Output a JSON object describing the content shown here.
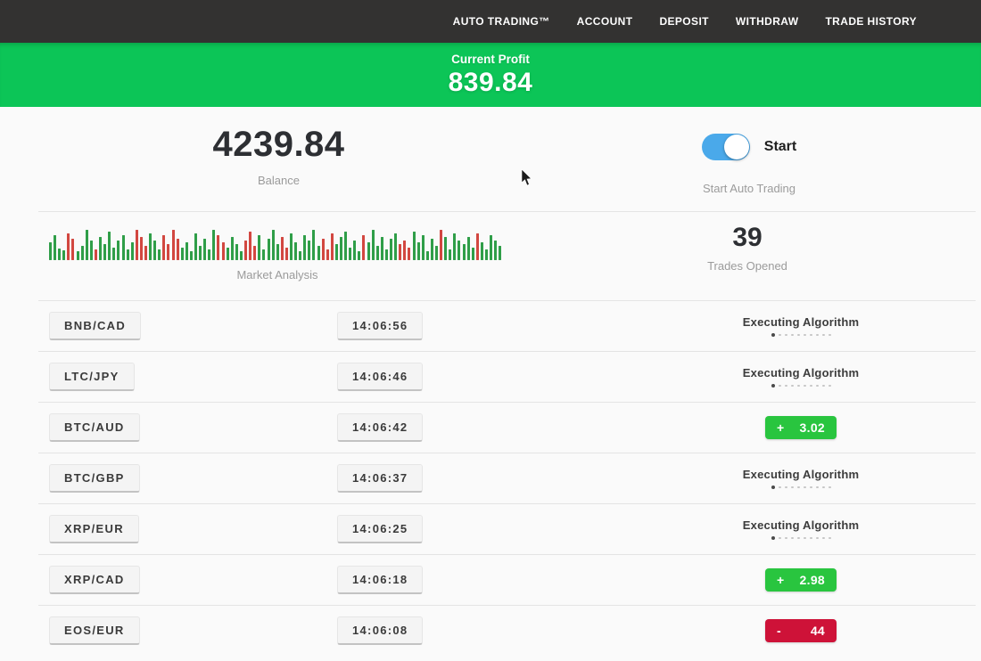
{
  "nav": {
    "items": [
      {
        "id": "auto-trading",
        "label": "AUTO TRADING™"
      },
      {
        "id": "account",
        "label": "ACCOUNT"
      },
      {
        "id": "deposit",
        "label": "DEPOSIT"
      },
      {
        "id": "withdraw",
        "label": "WITHDRAW"
      },
      {
        "id": "trade-history",
        "label": "TRADE HISTORY"
      }
    ]
  },
  "profit_banner": {
    "label": "Current Profit",
    "value": "839.84",
    "bg_color": "#0cc557"
  },
  "balance": {
    "value": "4239.84",
    "label": "Balance"
  },
  "auto_trading": {
    "toggle_label": "Start",
    "caption": "Start Auto Trading",
    "toggle_on": true,
    "toggle_color": "#4aa9ea"
  },
  "market": {
    "label": "Market Analysis",
    "green": "#2f9e48",
    "red": "#d24740",
    "bars": [
      [
        20,
        "g"
      ],
      [
        28,
        "g"
      ],
      [
        13,
        "g"
      ],
      [
        11,
        "g"
      ],
      [
        30,
        "r"
      ],
      [
        24,
        "r"
      ],
      [
        10,
        "g"
      ],
      [
        16,
        "g"
      ],
      [
        34,
        "g"
      ],
      [
        22,
        "g"
      ],
      [
        12,
        "r"
      ],
      [
        26,
        "g"
      ],
      [
        18,
        "g"
      ],
      [
        32,
        "g"
      ],
      [
        14,
        "g"
      ],
      [
        22,
        "g"
      ],
      [
        28,
        "g"
      ],
      [
        12,
        "g"
      ],
      [
        20,
        "g"
      ],
      [
        34,
        "r"
      ],
      [
        26,
        "r"
      ],
      [
        16,
        "r"
      ],
      [
        30,
        "g"
      ],
      [
        22,
        "g"
      ],
      [
        12,
        "g"
      ],
      [
        28,
        "r"
      ],
      [
        18,
        "r"
      ],
      [
        34,
        "r"
      ],
      [
        24,
        "r"
      ],
      [
        14,
        "g"
      ],
      [
        20,
        "g"
      ],
      [
        10,
        "g"
      ],
      [
        30,
        "g"
      ],
      [
        16,
        "g"
      ],
      [
        24,
        "g"
      ],
      [
        12,
        "g"
      ],
      [
        34,
        "g"
      ],
      [
        28,
        "r"
      ],
      [
        20,
        "r"
      ],
      [
        14,
        "g"
      ],
      [
        26,
        "g"
      ],
      [
        18,
        "g"
      ],
      [
        10,
        "g"
      ],
      [
        22,
        "r"
      ],
      [
        32,
        "r"
      ],
      [
        16,
        "r"
      ],
      [
        28,
        "g"
      ],
      [
        12,
        "g"
      ],
      [
        24,
        "g"
      ],
      [
        34,
        "g"
      ],
      [
        18,
        "g"
      ],
      [
        26,
        "r"
      ],
      [
        14,
        "r"
      ],
      [
        30,
        "g"
      ],
      [
        20,
        "g"
      ],
      [
        10,
        "g"
      ],
      [
        28,
        "g"
      ],
      [
        22,
        "g"
      ],
      [
        34,
        "g"
      ],
      [
        16,
        "g"
      ],
      [
        24,
        "r"
      ],
      [
        12,
        "r"
      ],
      [
        30,
        "r"
      ],
      [
        18,
        "g"
      ],
      [
        26,
        "g"
      ],
      [
        32,
        "g"
      ],
      [
        14,
        "g"
      ],
      [
        22,
        "g"
      ],
      [
        10,
        "g"
      ],
      [
        28,
        "r"
      ],
      [
        20,
        "g"
      ],
      [
        34,
        "g"
      ],
      [
        16,
        "g"
      ],
      [
        26,
        "g"
      ],
      [
        12,
        "g"
      ],
      [
        24,
        "g"
      ],
      [
        30,
        "g"
      ],
      [
        18,
        "r"
      ],
      [
        22,
        "r"
      ],
      [
        14,
        "r"
      ],
      [
        32,
        "g"
      ],
      [
        20,
        "g"
      ],
      [
        28,
        "g"
      ],
      [
        10,
        "g"
      ],
      [
        24,
        "g"
      ],
      [
        16,
        "g"
      ],
      [
        34,
        "r"
      ],
      [
        26,
        "g"
      ],
      [
        12,
        "g"
      ],
      [
        30,
        "g"
      ],
      [
        22,
        "g"
      ],
      [
        18,
        "g"
      ],
      [
        26,
        "g"
      ],
      [
        14,
        "g"
      ],
      [
        30,
        "r"
      ],
      [
        20,
        "g"
      ],
      [
        12,
        "g"
      ],
      [
        28,
        "g"
      ],
      [
        22,
        "g"
      ],
      [
        16,
        "g"
      ]
    ]
  },
  "trades_opened": {
    "value": "39",
    "label": "Trades Opened"
  },
  "rows": [
    {
      "pair": "BNB/CAD",
      "time": "14:06:56",
      "status": {
        "type": "executing",
        "label": "Executing Algorithm",
        "dots": 10
      }
    },
    {
      "pair": "LTC/JPY",
      "time": "14:06:46",
      "status": {
        "type": "executing",
        "label": "Executing Algorithm",
        "dots": 10
      }
    },
    {
      "pair": "BTC/AUD",
      "time": "14:06:42",
      "status": {
        "type": "profit",
        "sign": "+",
        "value": "3.02"
      }
    },
    {
      "pair": "BTC/GBP",
      "time": "14:06:37",
      "status": {
        "type": "executing",
        "label": "Executing Algorithm",
        "dots": 10
      }
    },
    {
      "pair": "XRP/EUR",
      "time": "14:06:25",
      "status": {
        "type": "executing",
        "label": "Executing Algorithm",
        "dots": 10
      }
    },
    {
      "pair": "XRP/CAD",
      "time": "14:06:18",
      "status": {
        "type": "profit",
        "sign": "+",
        "value": "2.98"
      }
    },
    {
      "pair": "EOS/EUR",
      "time": "14:06:08",
      "status": {
        "type": "loss",
        "sign": "-",
        "value": "44"
      }
    }
  ],
  "colors": {
    "navbar_bg": "#333231",
    "badge_green": "#29c53f",
    "badge_red": "#ce1238",
    "page_bg": "#fafafa"
  }
}
